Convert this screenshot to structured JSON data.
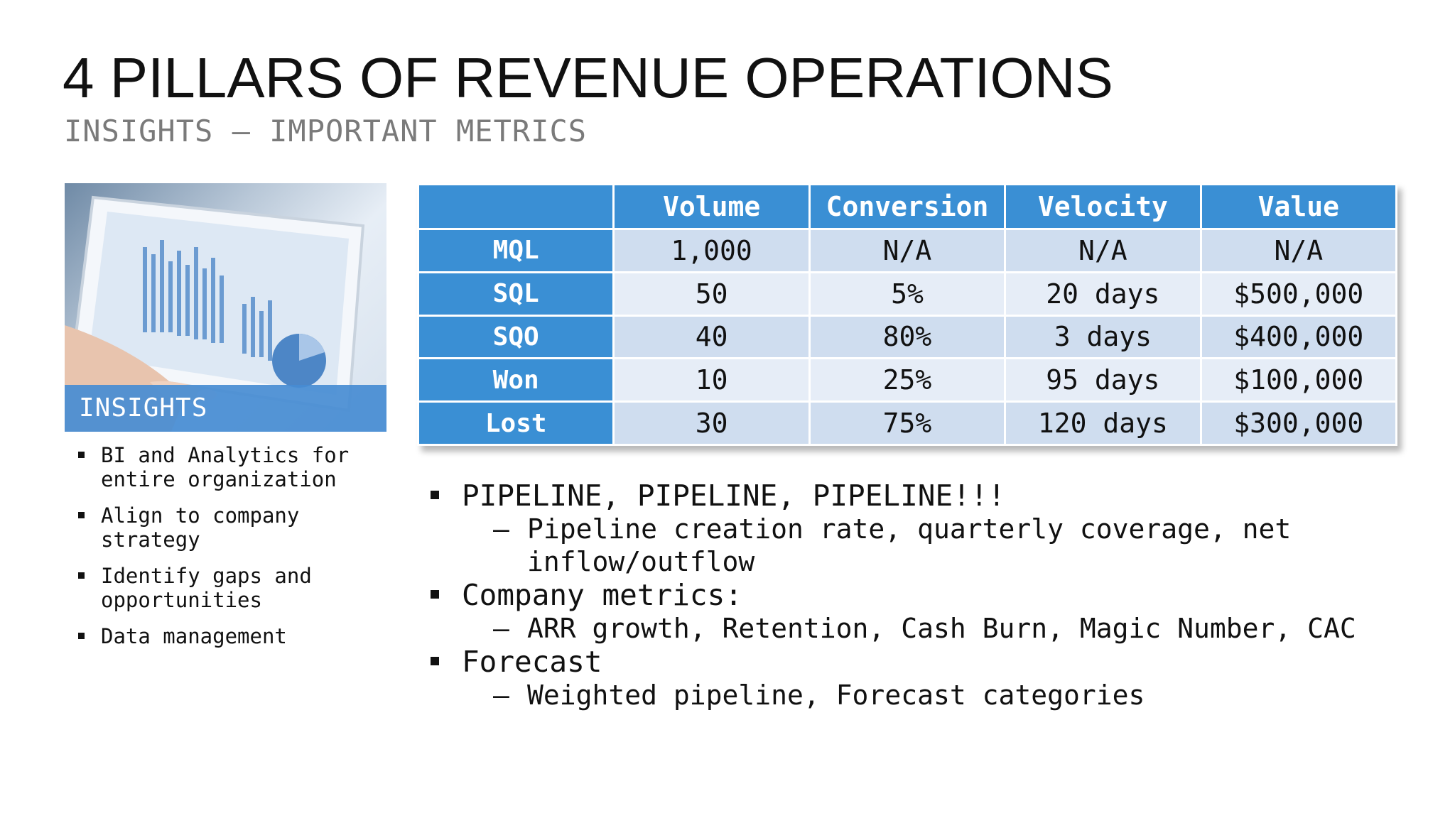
{
  "slide": {
    "title": "4 PILLARS OF REVENUE OPERATIONS",
    "subtitle": "INSIGHTS – IMPORTANT METRICS"
  },
  "photo": {
    "caption": "INSIGHTS",
    "icon": "tablet-analytics-image"
  },
  "left_bullets": [
    "BI and Analytics for entire organization",
    "Align to company strategy",
    "Identify gaps and opportunities",
    "Data management"
  ],
  "table": {
    "corner": "",
    "columns": [
      "Volume",
      "Conversion",
      "Velocity",
      "Value"
    ],
    "rows": [
      {
        "label": "MQL",
        "cells": [
          "1,000",
          "N/A",
          "N/A",
          "N/A"
        ]
      },
      {
        "label": "SQL",
        "cells": [
          "50",
          "5%",
          "20 days",
          "$500,000"
        ]
      },
      {
        "label": "SQO",
        "cells": [
          "40",
          "80%",
          "3 days",
          "$400,000"
        ]
      },
      {
        "label": "Won",
        "cells": [
          "10",
          "25%",
          "95 days",
          "$100,000"
        ]
      },
      {
        "label": "Lost",
        "cells": [
          "30",
          "75%",
          "120 days",
          "$300,000"
        ]
      }
    ],
    "colors": {
      "header": "#3a8fd4",
      "band_dark": "#cfddef",
      "band_light": "#e6edf7"
    }
  },
  "right_bullets": [
    {
      "text": "PIPELINE, PIPELINE, PIPELINE!!!",
      "sub": "Pipeline creation rate, quarterly coverage, net inflow/outflow"
    },
    {
      "text": "Company metrics:",
      "sub": "ARR growth, Retention, Cash Burn, Magic Number, CAC"
    },
    {
      "text": "Forecast",
      "sub": "Weighted pipeline, Forecast categories"
    }
  ]
}
